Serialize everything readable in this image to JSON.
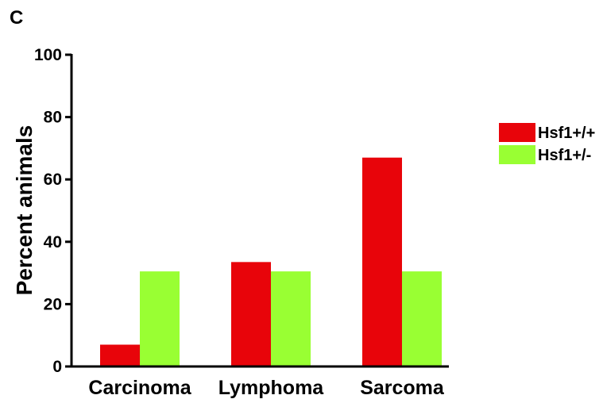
{
  "panel_label": "C",
  "chart_data": {
    "type": "bar",
    "categories": [
      "Carcinoma",
      "Lymphoma",
      "Sarcoma"
    ],
    "series": [
      {
        "name": "Hsf1+/+",
        "color": "#e8040a",
        "values": [
          7,
          33.5,
          67
        ]
      },
      {
        "name": "Hsf1+/-",
        "color": "#99ff33",
        "values": [
          30.5,
          30.5,
          30.5
        ]
      }
    ],
    "ylabel": "Percent animals",
    "xlabel": "",
    "ylim": [
      0,
      100
    ],
    "yticks": [
      "0",
      "20",
      "40",
      "60",
      "80",
      "100"
    ],
    "grid": false,
    "legend_position": "right"
  }
}
